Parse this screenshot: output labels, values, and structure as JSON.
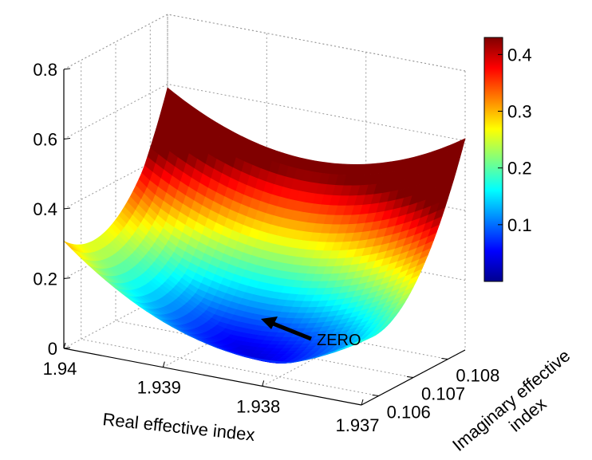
{
  "chart_data": {
    "type": "surface3d",
    "title": "",
    "xlabel": "Real effective index",
    "ylabel": "Imaginary effective index",
    "zlabel": "",
    "x_ticks": [
      "1.94",
      "1.939",
      "1.938",
      "1.937"
    ],
    "y_ticks": [
      "0.106",
      "0.107",
      "0.108"
    ],
    "z_ticks": [
      "0",
      "0.2",
      "0.4",
      "0.6",
      "0.8"
    ],
    "xlim": [
      1.937,
      1.94
    ],
    "ylim": [
      0.1055,
      0.1085
    ],
    "zlim": [
      0,
      0.8
    ],
    "colormap": "jet",
    "colorbar": {
      "ticks": [
        "0.1",
        "0.2",
        "0.3",
        "0.4"
      ],
      "range": [
        0,
        0.43
      ],
      "placement": "right"
    },
    "grid": true,
    "surface": {
      "minimum": {
        "x": 1.9383,
        "y": 0.1061,
        "z": 0.0
      },
      "corner_values": [
        {
          "x": 1.94,
          "y": 0.1055,
          "z": 0.4
        },
        {
          "x": 1.94,
          "y": 0.1085,
          "z": 0.6
        },
        {
          "x": 1.937,
          "y": 0.1085,
          "z": 0.6
        },
        {
          "x": 1.937,
          "y": 0.1055,
          "z": 0.35
        }
      ]
    },
    "annotations": [
      {
        "text": "ZERO",
        "points_to": "surface minimum"
      }
    ]
  }
}
